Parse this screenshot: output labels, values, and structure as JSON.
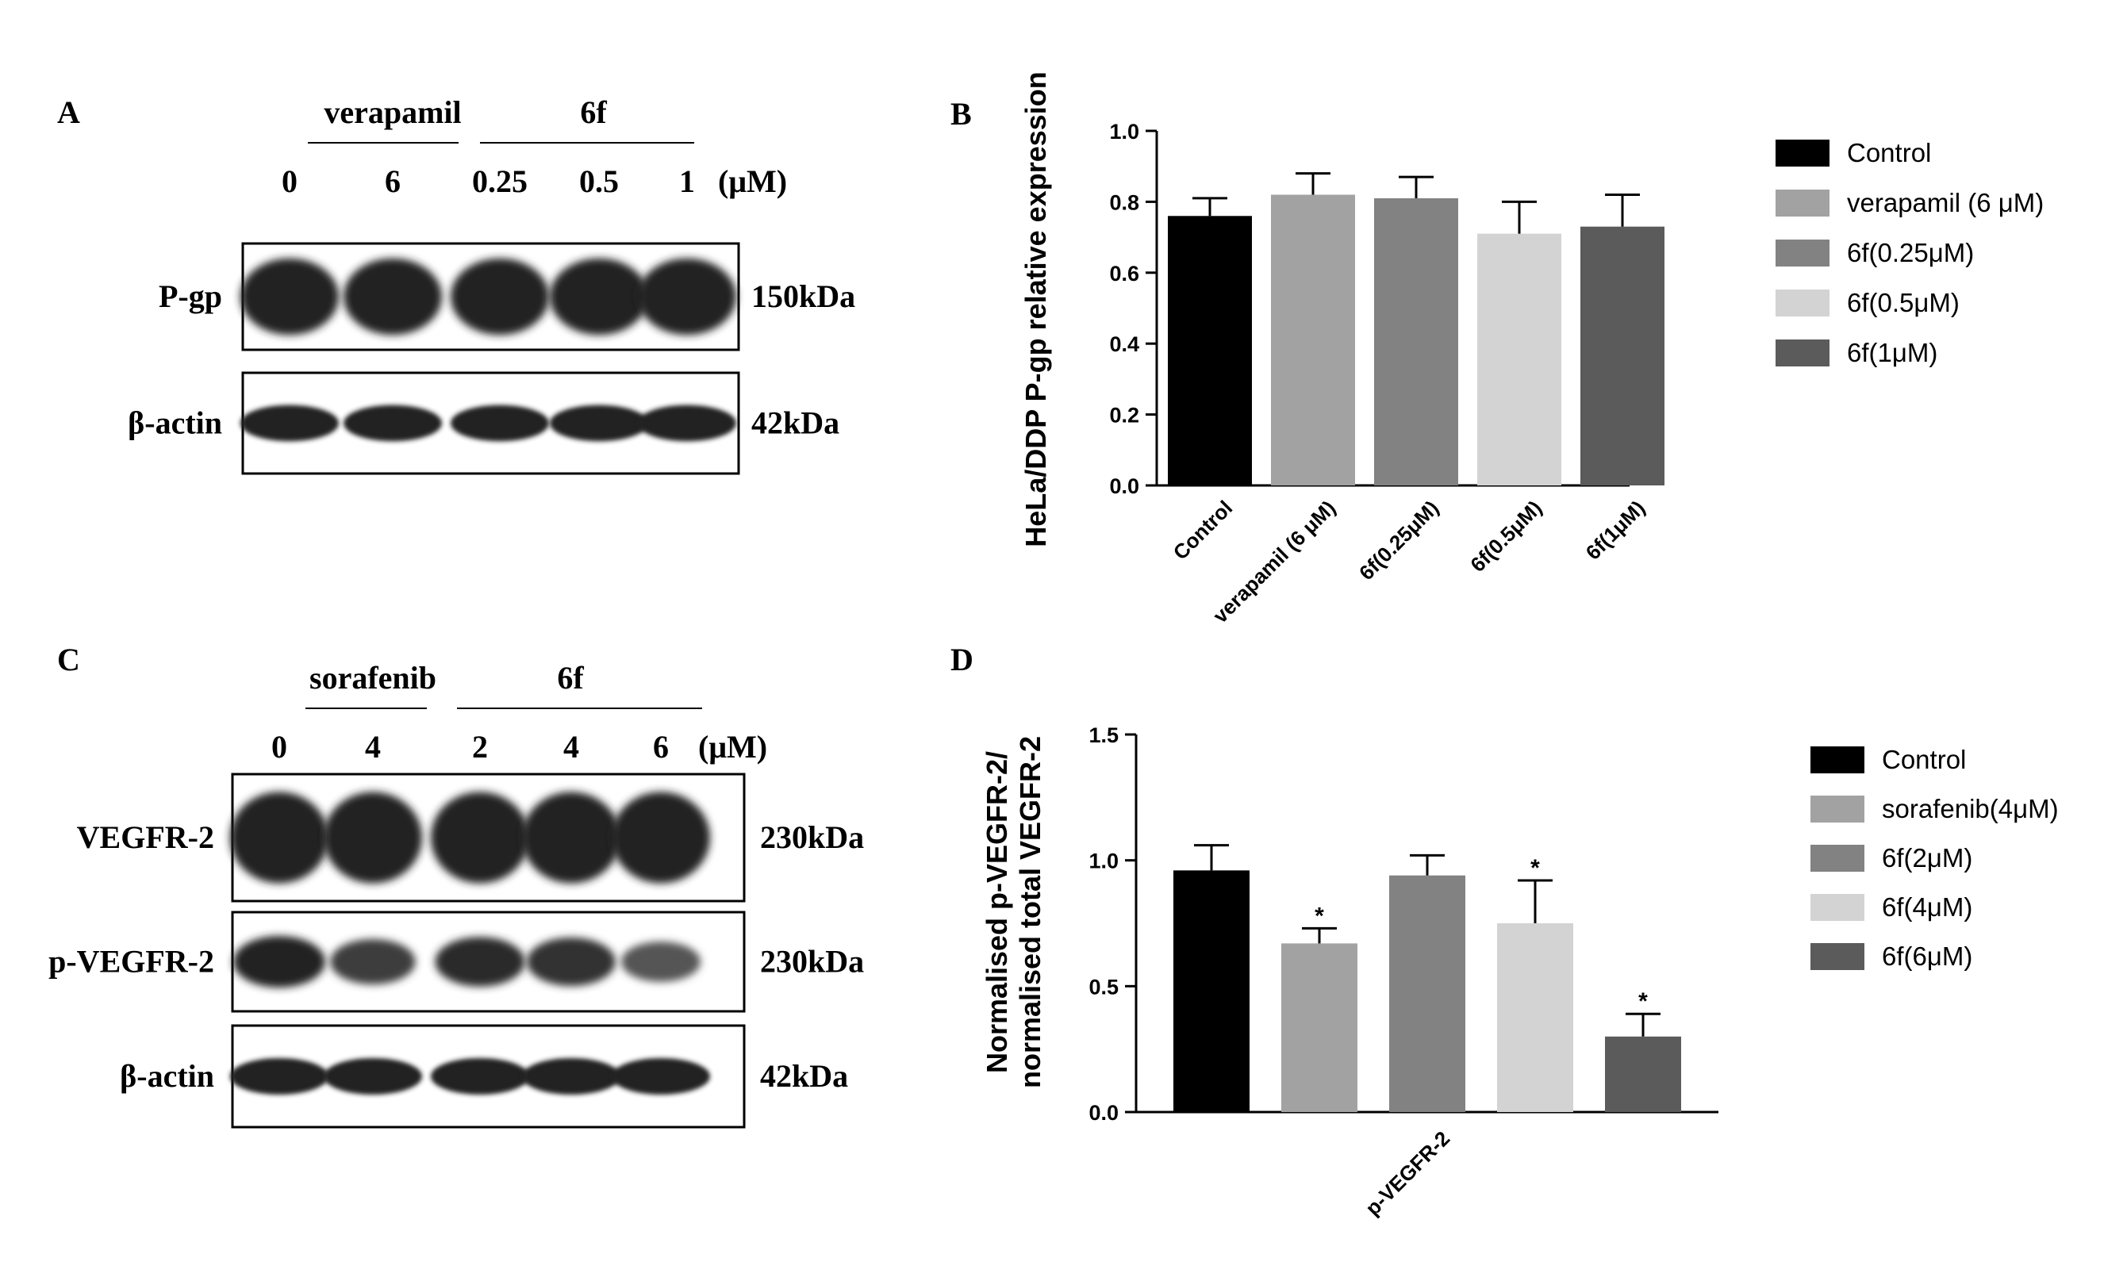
{
  "panel_a": {
    "letter": "A",
    "group_labels": [
      {
        "text": "verapamil",
        "lanes": [
          1
        ]
      },
      {
        "text": "6f",
        "lanes": [
          2,
          3,
          4
        ]
      }
    ],
    "lane_labels": [
      "0",
      "6",
      "0.25",
      "0.5",
      "1"
    ],
    "unit": "(μM)",
    "blots": [
      {
        "protein": "P-gp",
        "size": "150kDa",
        "band_type": "broad",
        "intensity": [
          1,
          1,
          1,
          1,
          1
        ]
      },
      {
        "protein": "β-actin",
        "size": "42kDa",
        "band_type": "thin",
        "intensity": [
          1,
          1,
          1,
          1,
          1
        ]
      }
    ]
  },
  "panel_c": {
    "letter": "C",
    "group_labels": [
      {
        "text": "sorafenib",
        "lanes": [
          1
        ]
      },
      {
        "text": "6f",
        "lanes": [
          2,
          3,
          4
        ]
      }
    ],
    "lane_labels": [
      "0",
      "4",
      "2",
      "4",
      "6"
    ],
    "unit": "(μM)",
    "blots": [
      {
        "protein": "VEGFR-2",
        "size": "230kDa",
        "band_type": "broad",
        "intensity": [
          1,
          1,
          1,
          1,
          1
        ]
      },
      {
        "protein": "p-VEGFR-2",
        "size": "230kDa",
        "band_type": "mid",
        "intensity": [
          1,
          0.7,
          0.9,
          0.85,
          0.45
        ]
      },
      {
        "protein": "β-actin",
        "size": "42kDa",
        "band_type": "thin",
        "intensity": [
          1,
          1,
          1,
          1,
          1
        ]
      }
    ]
  },
  "chart_data": [
    {
      "panel": "B",
      "type": "bar",
      "ylabel": "HeLa/DDP P-gp relative expression",
      "ylim": [
        0,
        1.0
      ],
      "yticks": [
        "0.0",
        "0.2",
        "0.4",
        "0.6",
        "0.8",
        "1.0"
      ],
      "categories": [
        "Control",
        "verapamil (6 μM)",
        "6f(0.25μM)",
        "6f(0.5μM)",
        "6f(1μM)"
      ],
      "values": [
        0.76,
        0.82,
        0.81,
        0.71,
        0.73
      ],
      "errors": [
        0.05,
        0.06,
        0.06,
        0.09,
        0.09
      ],
      "colors": [
        "#000000",
        "#a2a2a2",
        "#828282",
        "#d3d3d3",
        "#5b5b5b"
      ],
      "significance": [
        "",
        "",
        "",
        "",
        ""
      ],
      "legend": [
        "Control",
        "verapamil (6 μM)",
        "6f(0.25μM)",
        "6f(0.5μM)",
        "6f(1μM)"
      ],
      "legend_position": "right",
      "grid": false
    },
    {
      "panel": "D",
      "type": "bar",
      "ylabel": [
        "Normalised p-VEGFR-2/",
        "normalised total VEGFR-2"
      ],
      "ylim": [
        0,
        1.5
      ],
      "yticks": [
        "0.0",
        "0.5",
        "1.0",
        "1.5"
      ],
      "xlabel": "p-VEGFR-2",
      "categories": [
        "Control",
        "sorafenib(4μM)",
        "6f(2μM)",
        "6f(4μM)",
        "6f(6μM)"
      ],
      "values": [
        0.96,
        0.67,
        0.94,
        0.75,
        0.3
      ],
      "errors": [
        0.1,
        0.06,
        0.08,
        0.17,
        0.09
      ],
      "colors": [
        "#000000",
        "#a2a2a2",
        "#828282",
        "#d3d3d3",
        "#5b5b5b"
      ],
      "significance": [
        "",
        "*",
        "",
        "*",
        "*"
      ],
      "legend": [
        "Control",
        "sorafenib(4μM)",
        "6f(2μM)",
        "6f(4μM)",
        "6f(6μM)"
      ],
      "legend_position": "right",
      "grid": false
    }
  ]
}
